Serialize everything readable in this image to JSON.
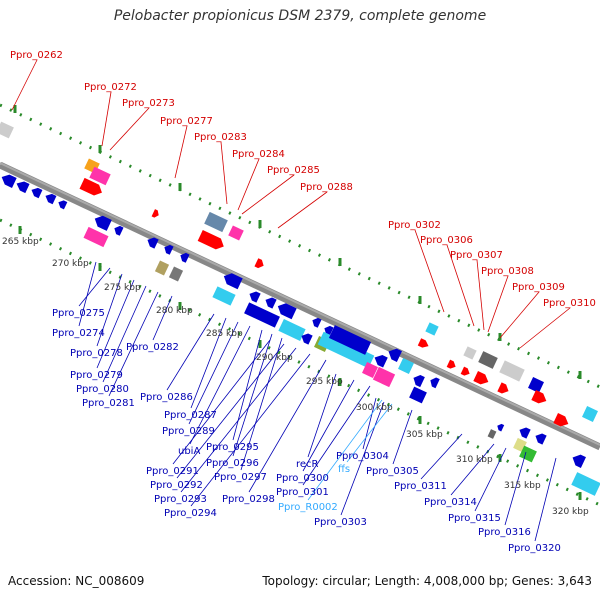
{
  "title": "Pelobacter propionicus DSM 2379, complete genome",
  "footer": {
    "accession": "Accession: NC_008609",
    "summary": "Topology: circular; Length: 4,008,000 bp; Genes: 3,643"
  },
  "colors": {
    "forward_label": "#d40000",
    "reverse_label": "#0000b4",
    "rna_label": "#33aaff",
    "backbone": "#888888",
    "tick": "#2a8a2a"
  },
  "kbp_ticks": [
    "265 kbp",
    "270 kbp",
    "275 kbp",
    "280 kbp",
    "285 kbp",
    "290 kbp",
    "295 kbp",
    "300 kbp",
    "305 kbp",
    "310 kbp",
    "315 kbp",
    "320 kbp"
  ],
  "forward_genes": [
    "Ppro_0262",
    "Ppro_0272",
    "Ppro_0273",
    "Ppro_0277",
    "Ppro_0283",
    "Ppro_0284",
    "Ppro_0285",
    "Ppro_0288",
    "Ppro_0302",
    "Ppro_0306",
    "Ppro_0307",
    "Ppro_0308",
    "Ppro_0309",
    "Ppro_0310"
  ],
  "reverse_genes": [
    "Ppro_0274",
    "Ppro_0275",
    "Ppro_0278",
    "Ppro_0279",
    "Ppro_0280",
    "Ppro_0281",
    "Ppro_0282",
    "Ppro_0286",
    "Ppro_0287",
    "Ppro_0289",
    "ubiA",
    "Ppro_0295",
    "Ppro_0296",
    "Ppro_0297",
    "Ppro_0291",
    "Ppro_0292",
    "Ppro_0293",
    "Ppro_0294",
    "Ppro_0298",
    "recR",
    "Ppro_0300",
    "Ppro_0301",
    "Ppro_0304",
    "Ppro_0305",
    "Ppro_0303",
    "Ppro_0311",
    "Ppro_0314",
    "Ppro_0315",
    "Ppro_0316",
    "Ppro_0320"
  ],
  "rna_genes": [
    "ffs",
    "Ppro_R0002"
  ]
}
